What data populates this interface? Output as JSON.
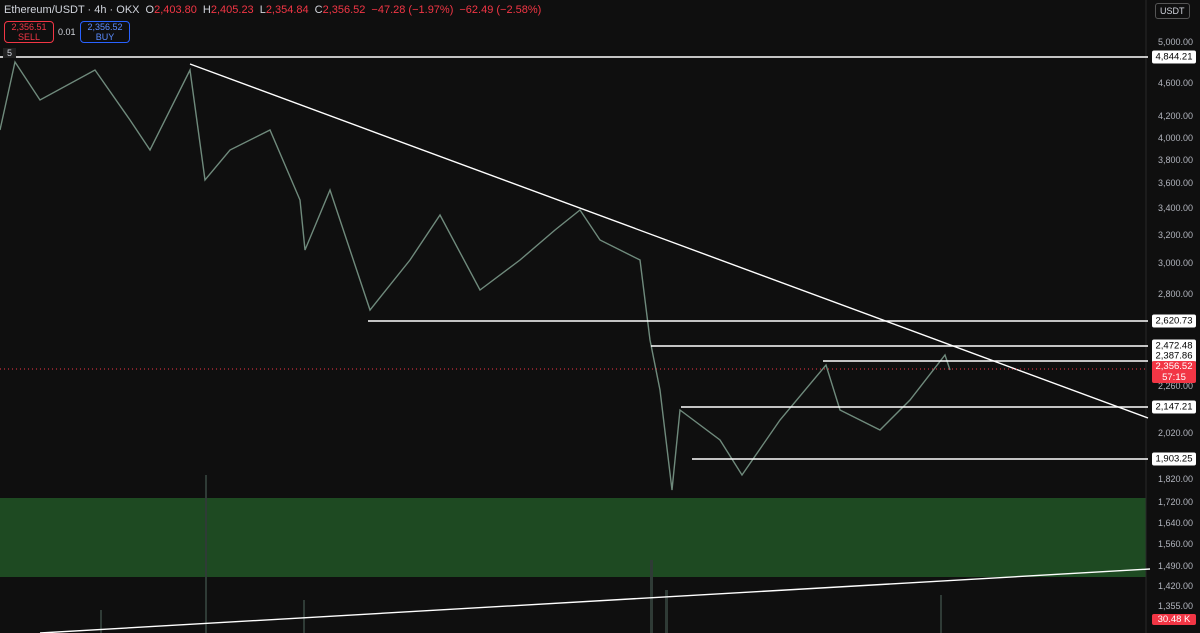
{
  "header": {
    "symbol": "Ethereum/USDT · 4h · OKX",
    "ohlc": [
      {
        "key": "O",
        "value": "2,403.80"
      },
      {
        "key": "H",
        "value": "2,405.23"
      },
      {
        "key": "L",
        "value": "2,354.84"
      },
      {
        "key": "C",
        "value": "2,356.52"
      }
    ],
    "change": "−47.28 (−1.97%)",
    "change2": "−62.49 (−2.58%)"
  },
  "trade": {
    "sell_price": "2,356.51",
    "sell": "SELL",
    "spread": "0.01",
    "buy_price": "2,356.52",
    "buy": "BUY"
  },
  "currency": "USDT",
  "badge": "5",
  "price_axis": [
    "5,000.00",
    "4,600.00",
    "4,200.00",
    "4,000.00",
    "3,800.00",
    "3,600.00",
    "3,400.00",
    "3,200.00",
    "3,000.00",
    "2,800.00",
    "2,260.00",
    "2,020.00",
    "1,820.00",
    "1,720.00",
    "1,640.00",
    "1,560.00",
    "1,490.00",
    "1,420.00",
    "1,355.00"
  ],
  "levels": [
    "4,844.21",
    "2,620.73",
    "2,472.48",
    "2,387.86",
    "2,147.21",
    "1,903.25"
  ],
  "current": {
    "price": "2,356.52",
    "countdown": "57:15"
  },
  "volume": "30.48 K"
}
